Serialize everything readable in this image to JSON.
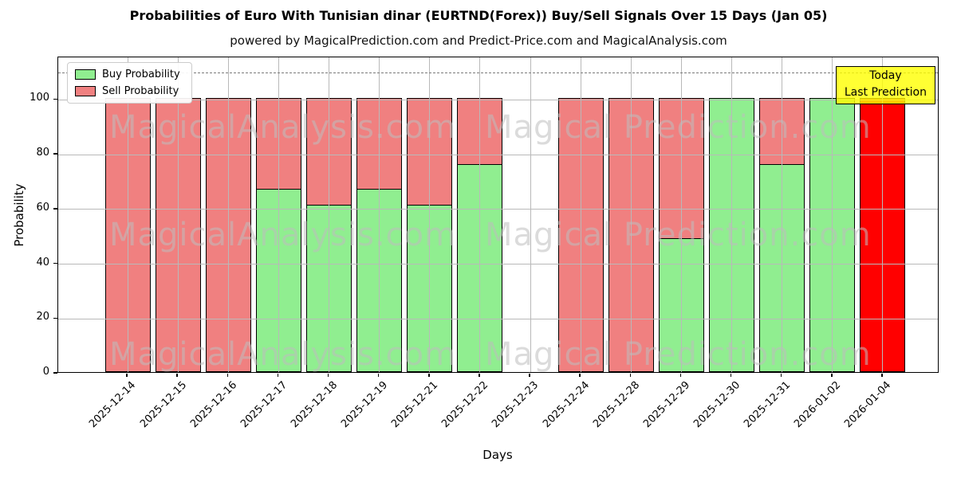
{
  "title": "Probabilities of Euro With Tunisian dinar (EURTND(Forex)) Buy/Sell Signals Over 15 Days (Jan 05)",
  "subtitle": "powered by MagicalPrediction.com and Predict-Price.com and MagicalAnalysis.com",
  "legend": {
    "items": [
      {
        "label": "Buy Probability",
        "color": "#90ee90"
      },
      {
        "label": "Sell Probability",
        "color": "#f08080"
      }
    ]
  },
  "annotation_box": {
    "line1": "Today",
    "line2": "Last Prediction",
    "bg_color": "#ffff00"
  },
  "watermarks": {
    "left_text": "MagicalAnalysis.com",
    "right_text": "Magical Prediction.com"
  },
  "axes": {
    "xlabel": "Days",
    "ylabel": "Probability",
    "ytick_labels": [
      "0",
      "20",
      "40",
      "60",
      "80",
      "100"
    ]
  },
  "colors": {
    "buy": "#90ee90",
    "sell": "#f08080",
    "today_bar": "#ff0000",
    "bar_edge": "#000000",
    "grid": "#b9b9b9",
    "dashed_line": "#7a7a7a"
  },
  "chart_data": {
    "type": "bar",
    "stacked": true,
    "title": "Probabilities of Euro With Tunisian dinar (EURTND(Forex)) Buy/Sell Signals Over 15 Days (Jan 05)",
    "xlabel": "Days",
    "ylabel": "Probability",
    "ylim": [
      0,
      115.5
    ],
    "yticks": [
      0,
      20,
      40,
      60,
      80,
      100
    ],
    "grid": true,
    "legend_position": "upper left",
    "dashed_reference_line_y": 110,
    "categories": [
      "2025-12-14",
      "2025-12-15",
      "2025-12-16",
      "2025-12-17",
      "2025-12-18",
      "2025-12-19",
      "2025-12-21",
      "2025-12-22",
      "2025-12-23",
      "2025-12-24",
      "2025-12-28",
      "2025-12-29",
      "2025-12-30",
      "2025-12-31",
      "2026-01-02",
      "2026-01-04"
    ],
    "series": [
      {
        "name": "Buy Probability",
        "color": "#90ee90",
        "values": [
          0,
          0,
          0,
          67,
          61,
          67,
          61,
          76,
          null,
          0,
          0,
          49,
          100,
          76,
          100,
          0
        ]
      },
      {
        "name": "Sell Probability",
        "color": "#f08080",
        "values": [
          100,
          100,
          100,
          33,
          39,
          33,
          39,
          24,
          null,
          100,
          100,
          51,
          0,
          24,
          0,
          100
        ]
      }
    ],
    "missing_categories": [
      "2025-12-23"
    ],
    "today": {
      "category": "2026-01-04",
      "value": 100,
      "color": "#ff0000",
      "label": "Today Last Prediction"
    }
  }
}
